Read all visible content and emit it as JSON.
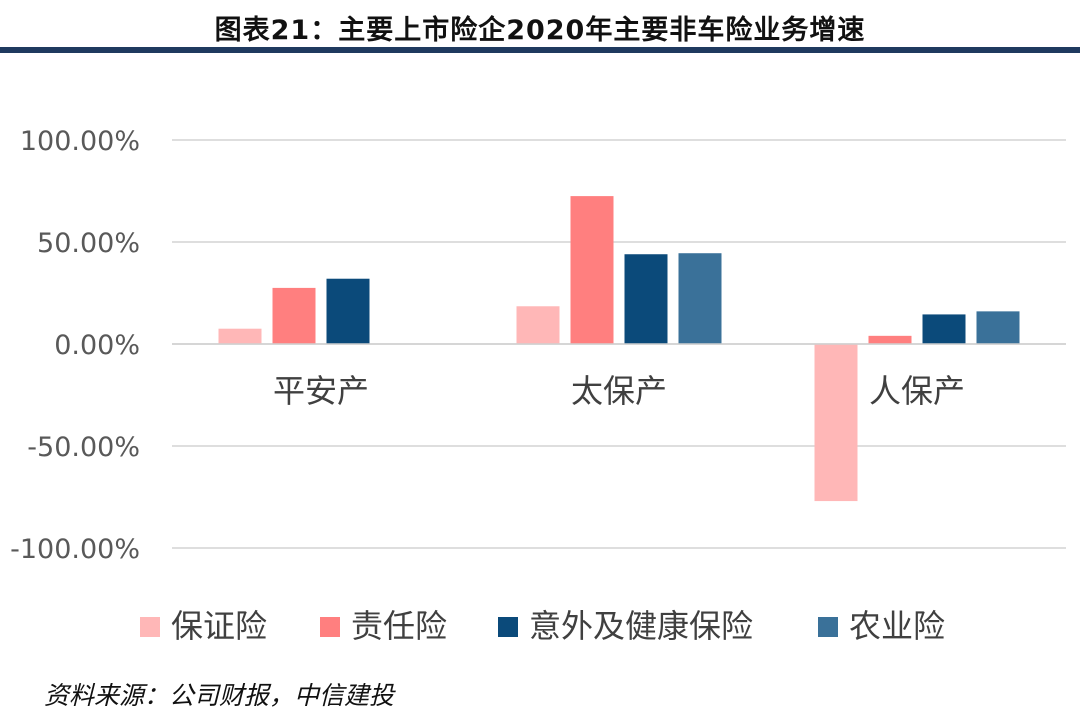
{
  "header": {
    "title": "图表21：主要上市险企2020年主要非车险业务增速"
  },
  "chart_data": {
    "type": "bar",
    "title": "图表21：主要上市险企2020年主要非车险业务增速",
    "xlabel": "",
    "ylabel": "",
    "ylim": [
      -100,
      100
    ],
    "yticks": [
      100,
      50,
      0,
      -50,
      -100
    ],
    "ytick_labels": [
      "100.00%",
      "50.00%",
      "0.00%",
      "-50.00%",
      "-100.00%"
    ],
    "grid": true,
    "legend_position": "bottom",
    "categories": [
      "平安产",
      "太保产",
      "人保产"
    ],
    "series": [
      {
        "name": "保证险",
        "color": "#ffb7b7",
        "values": [
          7.5,
          18.5,
          -77.0
        ]
      },
      {
        "name": "责任险",
        "color": "#ff7f7f",
        "values": [
          27.5,
          72.5,
          4.0
        ]
      },
      {
        "name": "意外及健康保险",
        "color": "#0b4a7a",
        "values": [
          32.0,
          44.0,
          14.5
        ]
      },
      {
        "name": "农业险",
        "color": "#3a7199",
        "values": [
          null,
          44.5,
          16.0
        ]
      }
    ]
  },
  "footer": {
    "source": "资料来源：公司财报，中信建投"
  }
}
